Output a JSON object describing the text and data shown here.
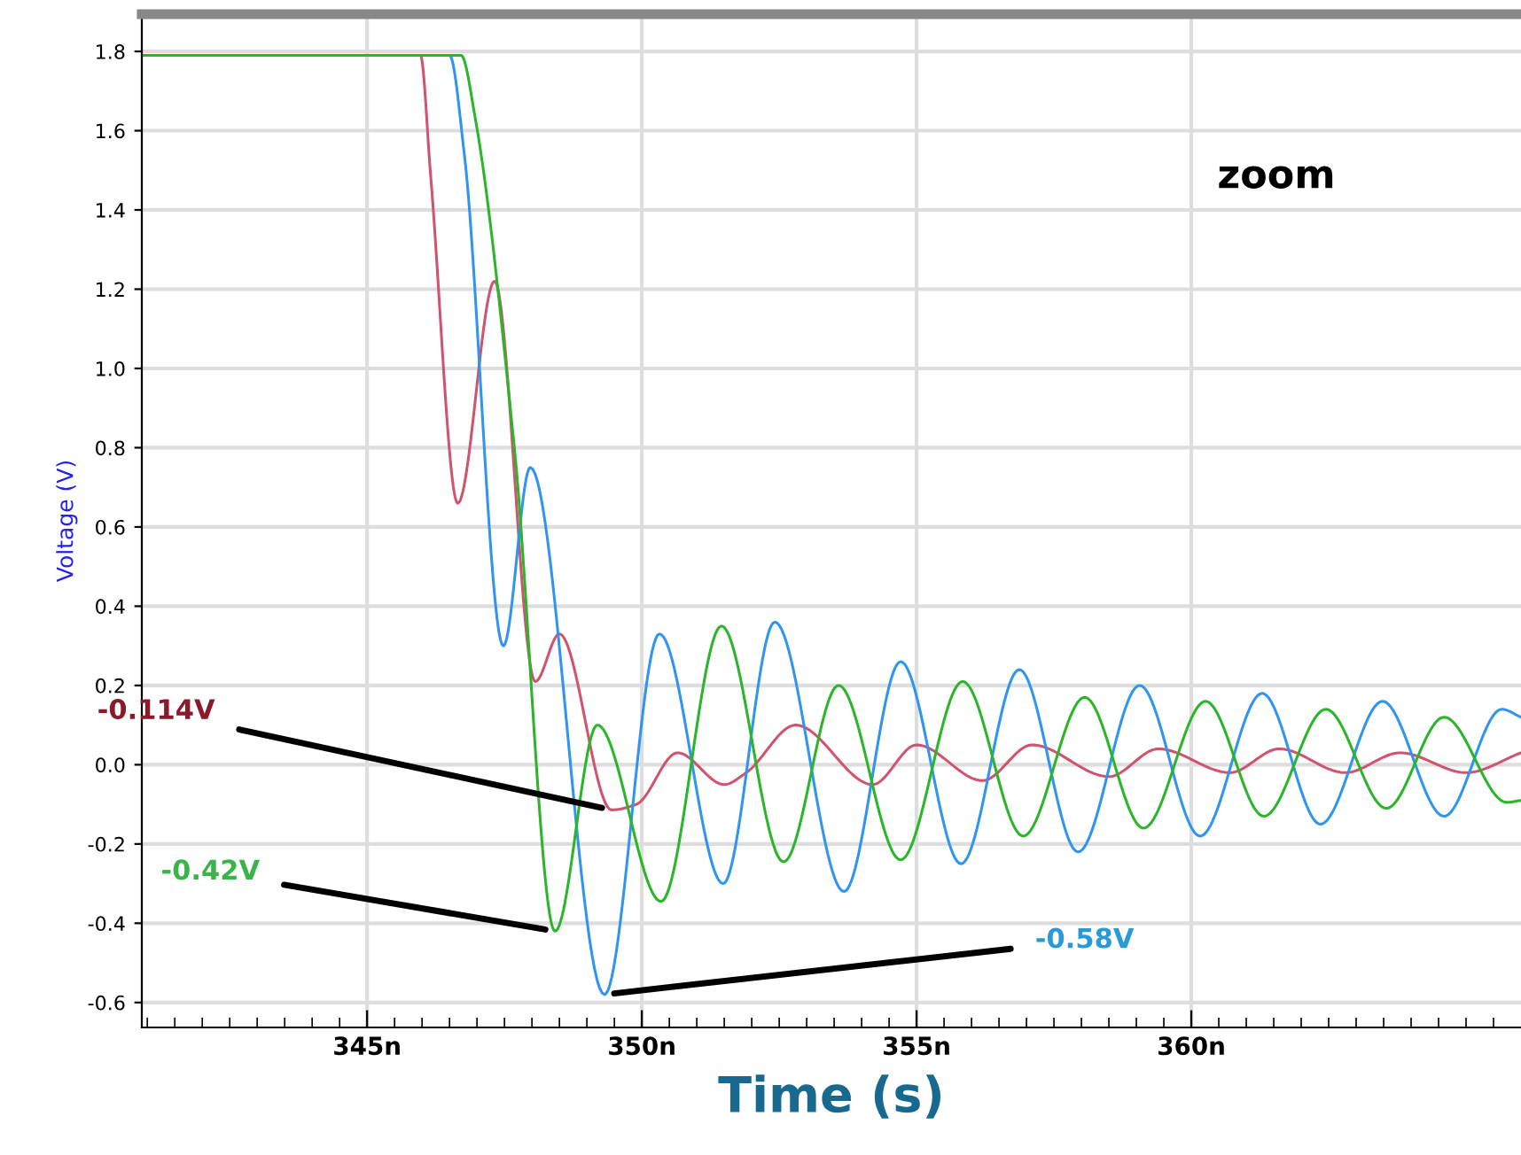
{
  "chart_data": {
    "type": "line",
    "xlabel": "Time (s)",
    "ylabel": "Voltage (V)",
    "xlim": [
      340.9,
      366.0
    ],
    "ylim": [
      -0.663,
      1.894
    ],
    "xticks": [
      {
        "value": 345,
        "label": "345n"
      },
      {
        "value": 350,
        "label": "350n"
      },
      {
        "value": 355,
        "label": "355n"
      },
      {
        "value": 360,
        "label": "360n"
      }
    ],
    "yticks": [
      -0.6,
      -0.4,
      -0.2,
      {
        "value": 0,
        "label": "0.0"
      },
      0.2,
      0.4,
      0.6,
      0.8,
      {
        "value": 1,
        "label": "1.0"
      },
      1.2,
      1.4,
      1.6,
      1.8
    ],
    "grid": true,
    "marker": "none",
    "line_style": "solid",
    "series": [
      {
        "color": "#d0546e",
        "x": [
          340.9,
          345.97,
          346.16,
          346.65,
          347.32,
          348.06,
          348.5,
          349.45,
          349.9,
          350.65,
          351.5,
          351.9,
          352.8,
          354.2,
          355.0,
          356.2,
          357.1,
          358.5,
          359.4,
          360.7,
          361.6,
          362.8,
          363.8,
          365.0,
          366.0
        ],
        "values": [
          1.79,
          1.79,
          1.48,
          0.66,
          1.22,
          0.21,
          0.33,
          -0.114,
          -0.1,
          0.03,
          -0.05,
          -0.02,
          0.1,
          -0.05,
          0.05,
          -0.04,
          0.05,
          -0.03,
          0.04,
          -0.02,
          0.04,
          -0.02,
          0.03,
          -0.02,
          0.03
        ]
      },
      {
        "color": "#2f95f0",
        "x": [
          340.9,
          346.5,
          346.77,
          347.48,
          347.97,
          349.32,
          350.32,
          351.48,
          352.42,
          353.68,
          354.71,
          355.81,
          356.87,
          357.94,
          359.06,
          360.16,
          361.29,
          362.35,
          363.48,
          364.6,
          365.65,
          366.0
        ],
        "values": [
          1.79,
          1.79,
          1.54,
          0.3,
          0.75,
          -0.58,
          0.33,
          -0.3,
          0.36,
          -0.32,
          0.26,
          -0.25,
          0.24,
          -0.22,
          0.2,
          -0.18,
          0.18,
          -0.15,
          0.16,
          -0.13,
          0.14,
          0.12
        ]
      },
      {
        "color": "#2bb52b",
        "x": [
          340.9,
          346.71,
          346.97,
          347.68,
          348.42,
          349.19,
          350.35,
          351.45,
          352.58,
          353.58,
          354.71,
          355.84,
          356.94,
          358.06,
          359.13,
          360.26,
          361.32,
          362.45,
          363.55,
          364.6,
          365.74,
          366.0
        ],
        "values": [
          1.79,
          1.79,
          1.63,
          0.8,
          -0.42,
          0.1,
          -0.345,
          0.35,
          -0.245,
          0.2,
          -0.24,
          0.21,
          -0.18,
          0.17,
          -0.16,
          0.16,
          -0.13,
          0.14,
          -0.11,
          0.12,
          -0.095,
          -0.09
        ]
      }
    ],
    "annotations": [
      {
        "text": "-0.114V",
        "x": 349.45,
        "y": -0.114
      },
      {
        "text": "-0.58V",
        "x": 349.32,
        "y": -0.58
      },
      {
        "text": "-0.42V",
        "x": 348.42,
        "y": -0.42
      },
      "zoom"
    ]
  }
}
